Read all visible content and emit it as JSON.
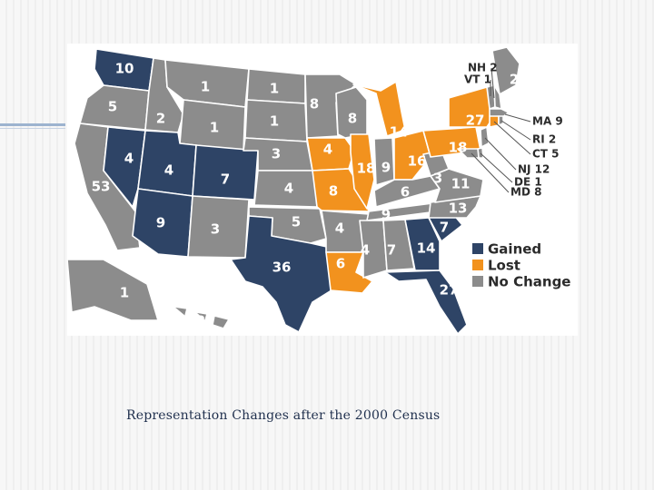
{
  "caption": "Representation Changes after the 2000 Census",
  "colors": {
    "gained": "#2e4466",
    "lost": "#f2921e",
    "no_change": "#8c8c8c"
  },
  "legend": [
    {
      "key": "gained",
      "label": "Gained"
    },
    {
      "key": "lost",
      "label": "Lost"
    },
    {
      "key": "no_change",
      "label": "No Change"
    }
  ],
  "states": [
    {
      "id": "WA",
      "status": "gained",
      "value": "10"
    },
    {
      "id": "OR",
      "status": "no_change",
      "value": "5"
    },
    {
      "id": "CA",
      "status": "no_change",
      "value": "53"
    },
    {
      "id": "NV",
      "status": "gained",
      "value": "4"
    },
    {
      "id": "ID",
      "status": "no_change",
      "value": "2"
    },
    {
      "id": "MT",
      "status": "no_change",
      "value": "1"
    },
    {
      "id": "WY",
      "status": "no_change",
      "value": "1"
    },
    {
      "id": "UT",
      "status": "gained",
      "value": "4"
    },
    {
      "id": "AZ",
      "status": "gained",
      "value": "9"
    },
    {
      "id": "CO",
      "status": "gained",
      "value": "7"
    },
    {
      "id": "NM",
      "status": "no_change",
      "value": "3"
    },
    {
      "id": "ND",
      "status": "no_change",
      "value": "1"
    },
    {
      "id": "SD",
      "status": "no_change",
      "value": "1"
    },
    {
      "id": "NE",
      "status": "no_change",
      "value": "3"
    },
    {
      "id": "KS",
      "status": "no_change",
      "value": "4"
    },
    {
      "id": "OK",
      "status": "no_change",
      "value": "5"
    },
    {
      "id": "TX",
      "status": "gained",
      "value": "36"
    },
    {
      "id": "MN",
      "status": "no_change",
      "value": "8"
    },
    {
      "id": "IA",
      "status": "lost",
      "value": "4"
    },
    {
      "id": "MO",
      "status": "lost",
      "value": "8"
    },
    {
      "id": "AR",
      "status": "no_change",
      "value": "4"
    },
    {
      "id": "LA",
      "status": "lost",
      "value": "6"
    },
    {
      "id": "WI",
      "status": "no_change",
      "value": "8"
    },
    {
      "id": "IL",
      "status": "lost",
      "value": "18"
    },
    {
      "id": "MI",
      "status": "lost",
      "value": "14"
    },
    {
      "id": "IN",
      "status": "no_change",
      "value": "9"
    },
    {
      "id": "OH",
      "status": "lost",
      "value": "16"
    },
    {
      "id": "KY",
      "status": "no_change",
      "value": "6"
    },
    {
      "id": "TN",
      "status": "no_change",
      "value": "9"
    },
    {
      "id": "MS",
      "status": "no_change",
      "value": "4"
    },
    {
      "id": "AL",
      "status": "no_change",
      "value": "7"
    },
    {
      "id": "GA",
      "status": "gained",
      "value": "14"
    },
    {
      "id": "FL",
      "status": "gained",
      "value": "27"
    },
    {
      "id": "SC",
      "status": "gained",
      "value": "7"
    },
    {
      "id": "NC",
      "status": "no_change",
      "value": "13"
    },
    {
      "id": "VA",
      "status": "no_change",
      "value": "11"
    },
    {
      "id": "WV",
      "status": "no_change",
      "value": "3"
    },
    {
      "id": "PA",
      "status": "lost",
      "value": "18"
    },
    {
      "id": "NY",
      "status": "lost",
      "value": "27"
    },
    {
      "id": "ME",
      "status": "no_change",
      "value": "2"
    },
    {
      "id": "AK",
      "status": "no_change",
      "value": "1"
    },
    {
      "id": "HI",
      "status": "no_change",
      "value": "2"
    }
  ],
  "callouts": [
    {
      "id": "NH",
      "status": "no_change",
      "text": "NH 2"
    },
    {
      "id": "VT",
      "status": "no_change",
      "text": "VT 1"
    },
    {
      "id": "MA",
      "status": "no_change",
      "text": "MA 9"
    },
    {
      "id": "RI",
      "status": "no_change",
      "text": "RI 2"
    },
    {
      "id": "CT",
      "status": "lost",
      "text": "CT 5"
    },
    {
      "id": "NJ",
      "status": "no_change",
      "text": "NJ 12"
    },
    {
      "id": "DE",
      "status": "no_change",
      "text": "DE 1"
    },
    {
      "id": "MD",
      "status": "no_change",
      "text": "MD 8"
    }
  ]
}
